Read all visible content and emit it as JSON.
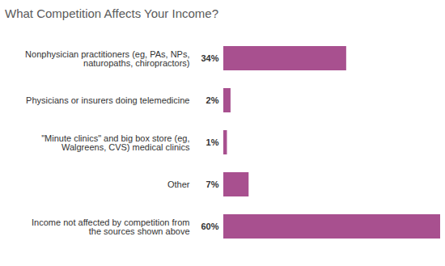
{
  "chart_data": {
    "type": "bar",
    "title": "What Competition Affects Your Income?",
    "orientation": "horizontal",
    "categories": [
      "Nonphysician practitioners (eg, PAs, NPs, naturopaths, chiropractors)",
      "Physicians or insurers doing telemedicine",
      "\"Minute clinics\" and big box store (eg, Walgreens, CVS) medical clinics",
      "Other",
      "Income not affected by competition from the sources shown above"
    ],
    "values": [
      34,
      2,
      1,
      7,
      60
    ],
    "value_labels": [
      "34%",
      "2%",
      "1%",
      "7%",
      "60%"
    ],
    "color": "#a8508f",
    "xlim": [
      0,
      60
    ],
    "data_labels": true,
    "tick_labels": "y",
    "grid": false
  }
}
